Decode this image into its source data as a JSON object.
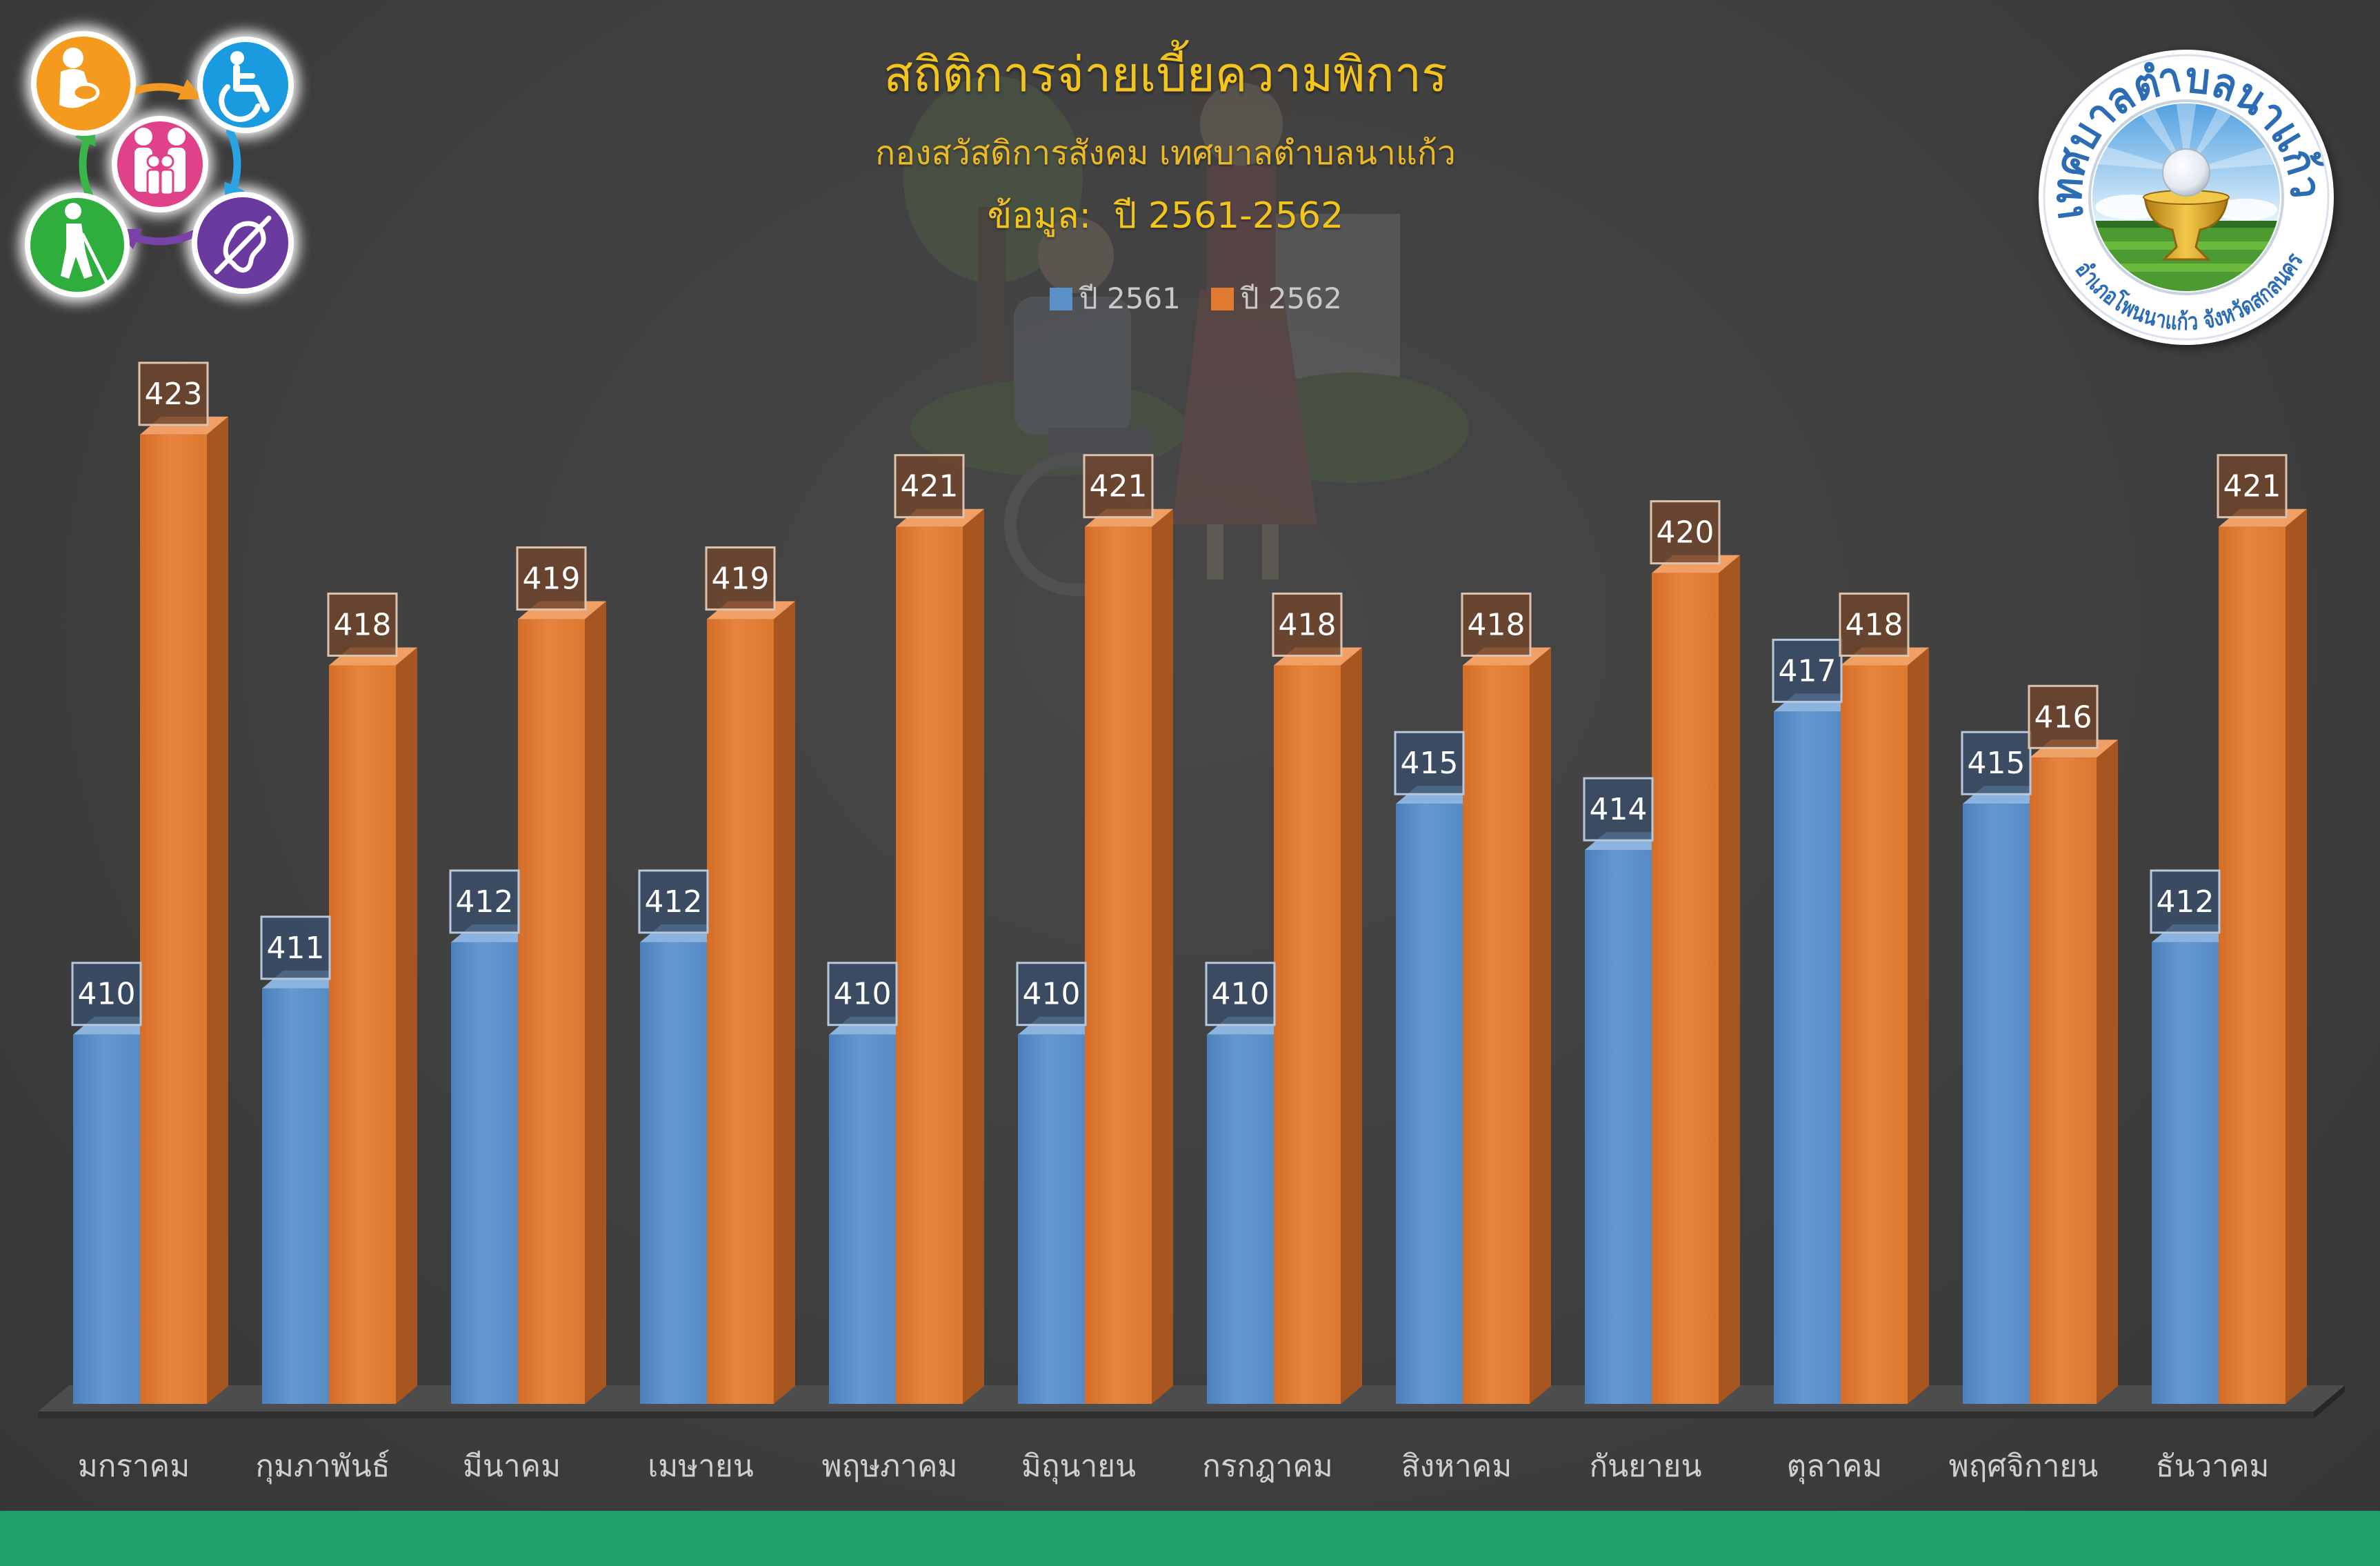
{
  "header": {
    "title": "สถิติการจ่ายเบี้ยความพิการ",
    "subtitle": "กองสวัสดิการสังคม เทศบาลตำบลนาแก้ว",
    "data_note": "ข้อมูล:  ปี 2561-2562"
  },
  "logo_left": {
    "icons": [
      "pregnant-woman-icon",
      "wheelchair-icon",
      "family-icon",
      "blind-person-icon",
      "deaf-icon"
    ]
  },
  "logo_right": {
    "top_text": "เทศบาลตำบลนาแก้ว",
    "bottom_text": "อำเภอโพนนาแก้ว จังหวัดสกลนคร"
  },
  "colors": {
    "background": "#3e3e3e",
    "title": "#f3c41c",
    "subtitle": "#eab923",
    "legend_text": "#c9c9c9",
    "tick_text": "#cfcfcf",
    "footer_band": "#21a06c"
  },
  "chart_data": {
    "type": "bar",
    "categories": [
      "มกราคม",
      "กุมภาพันธ์",
      "มีนาคม",
      "เมษายน",
      "พฤษภาคม",
      "มิถุนายน",
      "กรกฎาคม",
      "สิงหาคม",
      "กันยายน",
      "ตุลาคม",
      "พฤศจิกายน",
      "ธันวาคม"
    ],
    "series": [
      {
        "name": "ปี 2561",
        "color": "#5b8fc9",
        "values": [
          410,
          411,
          412,
          412,
          410,
          410,
          410,
          415,
          414,
          417,
          415,
          412
        ]
      },
      {
        "name": "ปี 2562",
        "color": "#e07b31",
        "values": [
          423,
          418,
          419,
          419,
          421,
          421,
          418,
          418,
          420,
          418,
          416,
          421
        ]
      }
    ],
    "ylim": [
      402,
      424
    ],
    "grid": false,
    "legend_position": "top-center",
    "data_labels": true
  }
}
